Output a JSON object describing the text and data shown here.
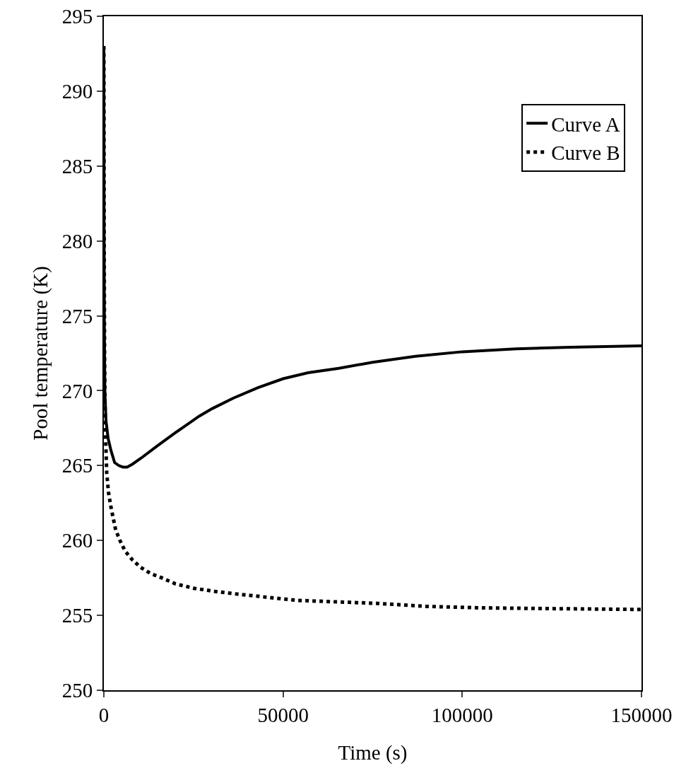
{
  "chart_data": {
    "type": "line",
    "xlabel": "Time (s)",
    "ylabel": "Pool temperature (K)",
    "xlim": [
      0,
      150000
    ],
    "xticks": [
      0,
      50000,
      100000,
      150000
    ],
    "ylim": [
      250,
      295
    ],
    "yticks": [
      250,
      255,
      260,
      265,
      270,
      275,
      280,
      285,
      290,
      295
    ],
    "grid": false,
    "legend": "top right",
    "marker": "none",
    "series": [
      {
        "name": "Curve A",
        "color": "#000000",
        "line_style": "solid",
        "x": [
          0,
          60,
          150,
          280,
          600,
          1200,
          2000,
          3000,
          4200,
          5300,
          6500,
          8000,
          10400,
          14800,
          20000,
          26600,
          30200,
          36100,
          43000,
          50000,
          57000,
          65600,
          75000,
          87000,
          100000,
          115000,
          130000,
          150000
        ],
        "values": [
          293,
          282,
          274,
          270,
          268,
          266.8,
          266,
          265.2,
          265,
          264.9,
          264.9,
          265.1,
          265.5,
          266.3,
          267.2,
          268.3,
          268.8,
          269.5,
          270.2,
          270.8,
          271.2,
          271.5,
          271.9,
          272.3,
          272.6,
          272.8,
          272.9,
          273
        ]
      },
      {
        "name": "Curve B",
        "color": "#000000",
        "line_style": "dotted",
        "x": [
          0,
          80,
          200,
          400,
          800,
          1300,
          2000,
          3300,
          4500,
          5900,
          8000,
          10300,
          13000,
          16200,
          20000,
          25300,
          31000,
          38000,
          46000,
          54000,
          65000,
          76300,
          90000,
          105500,
          125000,
          147200,
          150000
        ],
        "values": [
          293,
          280,
          272,
          267.5,
          264.5,
          263.2,
          262.2,
          260.7,
          260,
          259.3,
          258.7,
          258.2,
          257.8,
          257.5,
          257.1,
          256.8,
          256.6,
          256.4,
          256.2,
          256,
          255.9,
          255.8,
          255.6,
          255.5,
          255.45,
          255.4,
          255.4
        ]
      }
    ]
  }
}
